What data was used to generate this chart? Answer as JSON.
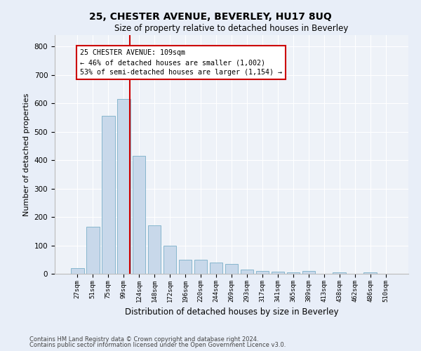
{
  "title": "25, CHESTER AVENUE, BEVERLEY, HU17 8UQ",
  "subtitle": "Size of property relative to detached houses in Beverley",
  "xlabel": "Distribution of detached houses by size in Beverley",
  "ylabel": "Number of detached properties",
  "bin_labels": [
    "27sqm",
    "51sqm",
    "75sqm",
    "99sqm",
    "124sqm",
    "148sqm",
    "172sqm",
    "196sqm",
    "220sqm",
    "244sqm",
    "269sqm",
    "293sqm",
    "317sqm",
    "341sqm",
    "365sqm",
    "389sqm",
    "413sqm",
    "438sqm",
    "462sqm",
    "486sqm",
    "510sqm"
  ],
  "bar_heights": [
    20,
    165,
    555,
    615,
    415,
    170,
    100,
    50,
    50,
    40,
    35,
    15,
    10,
    8,
    5,
    10,
    0,
    5,
    0,
    5,
    0
  ],
  "bar_color": "#c8d8ea",
  "bar_edge_color": "#7aafc8",
  "vline_color": "#cc0000",
  "annotation_text": "25 CHESTER AVENUE: 109sqm\n← 46% of detached houses are smaller (1,002)\n53% of semi-detached houses are larger (1,154) →",
  "annotation_box_color": "#cc0000",
  "ylim": [
    0,
    840
  ],
  "yticks": [
    0,
    100,
    200,
    300,
    400,
    500,
    600,
    700,
    800
  ],
  "footer1": "Contains HM Land Registry data © Crown copyright and database right 2024.",
  "footer2": "Contains public sector information licensed under the Open Government Licence v3.0.",
  "bg_color": "#e8eef8",
  "plot_bg_color": "#eef2f8"
}
